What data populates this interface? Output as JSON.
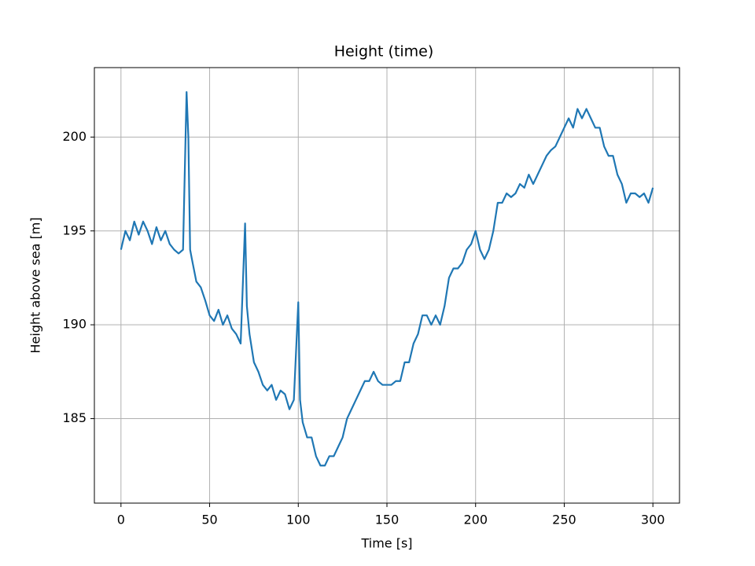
{
  "chart_data": {
    "type": "line",
    "title": "Height (time)",
    "x_label": "Time [s]",
    "y_label": "Height above sea [m]",
    "x": [
      0,
      2.5,
      5,
      7.5,
      10,
      12.5,
      15,
      17.5,
      20,
      22.5,
      25,
      27.5,
      30,
      32.5,
      35,
      37,
      38,
      39,
      40,
      42.5,
      45,
      47.5,
      50,
      52.5,
      55,
      57.5,
      60,
      62.5,
      65,
      67.5,
      70,
      71,
      72.5,
      75,
      77.5,
      80,
      82.5,
      85,
      87.5,
      90,
      92.5,
      95,
      97.5,
      100,
      101,
      102.5,
      105,
      107.5,
      110,
      112.5,
      115,
      117.5,
      120,
      122.5,
      125,
      127.5,
      130,
      132.5,
      135,
      137.5,
      140,
      142.5,
      145,
      147.5,
      150,
      152.5,
      155,
      157.5,
      160,
      162.5,
      165,
      167.5,
      170,
      172.5,
      175,
      177.5,
      180,
      182.5,
      185,
      187.5,
      190,
      192.5,
      195,
      197.5,
      200,
      202.5,
      205,
      207.5,
      210,
      212.5,
      215,
      217.5,
      220,
      222.5,
      225,
      227.5,
      230,
      232.5,
      235,
      237.5,
      240,
      242.5,
      245,
      247.5,
      250,
      252.5,
      255,
      257.5,
      260,
      262.5,
      265,
      267.5,
      270,
      272.5,
      275,
      277.5,
      280,
      282.5,
      285,
      287.5,
      290,
      292.5,
      295,
      297.5,
      300
    ],
    "series": [
      {
        "name": "Height",
        "color": "#1f77b4",
        "values": [
          194,
          195,
          194.5,
          195.5,
          194.8,
          195.5,
          195,
          194.3,
          195.2,
          194.5,
          195,
          194.3,
          194,
          193.8,
          194,
          202.4,
          200,
          194,
          193.5,
          192.3,
          192,
          191.3,
          190.5,
          190.2,
          190.8,
          190,
          190.5,
          189.8,
          189.5,
          189,
          195.4,
          191,
          189.5,
          188,
          187.5,
          186.8,
          186.5,
          186.8,
          186,
          186.5,
          186.3,
          185.5,
          186,
          191.2,
          186,
          184.8,
          184,
          184,
          183,
          182.5,
          182.5,
          183,
          183,
          183.5,
          184,
          185,
          185.5,
          186,
          186.5,
          187,
          187,
          187.5,
          187,
          186.8,
          186.8,
          186.8,
          187,
          187,
          188,
          188,
          189,
          189.5,
          190.5,
          190.5,
          190,
          190.5,
          190,
          191,
          192.5,
          193,
          193,
          193.3,
          194,
          194.3,
          195,
          194,
          193.5,
          194,
          195,
          196.5,
          196.5,
          197,
          196.8,
          197,
          197.5,
          197.3,
          198,
          197.5,
          198,
          198.5,
          199,
          199.3,
          199.5,
          200,
          200.5,
          201,
          200.5,
          201.5,
          201,
          201.5,
          201,
          200.5,
          200.5,
          199.5,
          199,
          199,
          198,
          197.5,
          196.5,
          197,
          197,
          196.8,
          197,
          196.5,
          197.3
        ]
      }
    ],
    "xlim": [
      -15,
      315
    ],
    "ylim": [
      180.5,
      203.7
    ],
    "xticks": [
      0,
      50,
      100,
      150,
      200,
      250,
      300
    ],
    "yticks": [
      185,
      190,
      195,
      200
    ],
    "grid": true
  }
}
